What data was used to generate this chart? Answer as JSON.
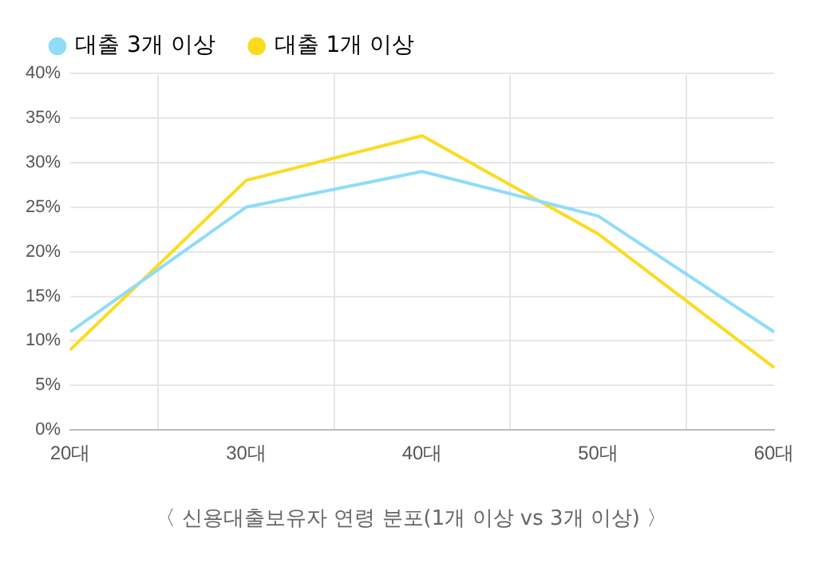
{
  "chart_data": {
    "type": "line",
    "categories": [
      "20대",
      "30대",
      "40대",
      "50대",
      "60대"
    ],
    "series": [
      {
        "name": "대출 3개 이상",
        "color": "#8fdcf8",
        "values": [
          11,
          25,
          29,
          24,
          11
        ]
      },
      {
        "name": "대출 1개 이상",
        "color": "#fcdb1f",
        "values": [
          9,
          28,
          33,
          22,
          7
        ]
      }
    ],
    "ylim": [
      0,
      40
    ],
    "yticks": [
      {
        "value": 0,
        "label": "0%"
      },
      {
        "value": 5,
        "label": "5%"
      },
      {
        "value": 10,
        "label": "10%"
      },
      {
        "value": 15,
        "label": "15%"
      },
      {
        "value": 20,
        "label": "20%"
      },
      {
        "value": 25,
        "label": "25%"
      },
      {
        "value": 30,
        "label": "30%"
      },
      {
        "value": 35,
        "label": "35%"
      },
      {
        "value": 40,
        "label": "40%"
      }
    ],
    "grid": true,
    "legend": "top left",
    "marker": "none",
    "line_style": "solid",
    "annotations": [
      "〈 신용대출보유자 연령 분포(1개 이상 vs 3개 이상) 〉"
    ]
  }
}
